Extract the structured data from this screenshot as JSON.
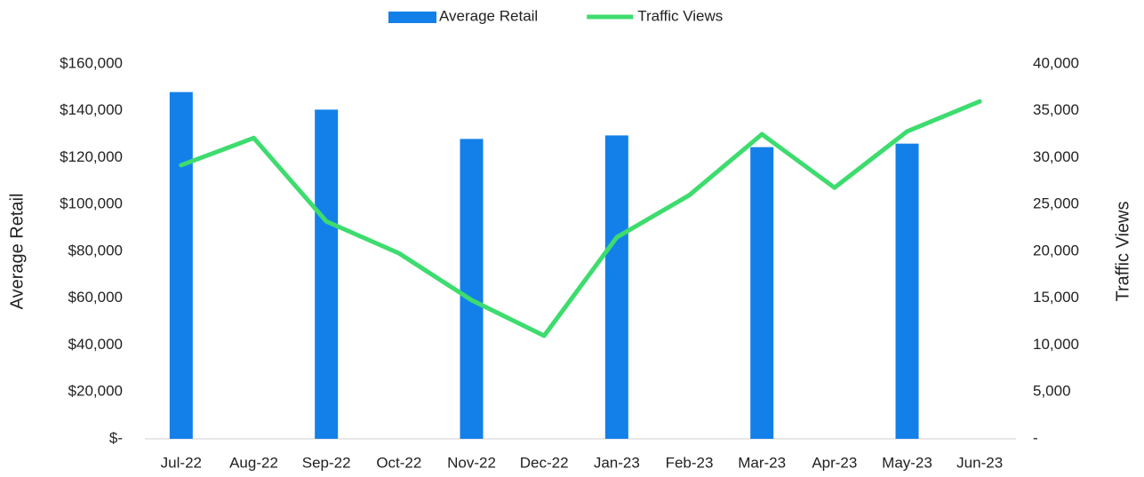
{
  "chart_data": {
    "type": "bar",
    "categories": [
      "Jul-22",
      "Aug-22",
      "Sep-22",
      "Oct-22",
      "Nov-22",
      "Dec-22",
      "Jan-23",
      "Feb-23",
      "Mar-23",
      "Apr-23",
      "May-23",
      "Jun-23"
    ],
    "series": [
      {
        "name": "Average Retail",
        "type": "bar",
        "color": "#1380ea",
        "values": [
          148000,
          null,
          140500,
          null,
          128000,
          null,
          129500,
          null,
          124500,
          null,
          126000,
          null
        ]
      },
      {
        "name": "Traffic Views",
        "type": "line",
        "axis": "y2",
        "color": "#3ddc6e",
        "values": [
          29200,
          32100,
          23200,
          19800,
          14800,
          11000,
          21500,
          26000,
          32500,
          26800,
          32800,
          36000
        ]
      }
    ],
    "y_label": "Average Retail",
    "y2_label": "Traffic Views",
    "ylim": [
      0,
      160000
    ],
    "yticks": [
      {
        "value": 0,
        "label": "$-"
      },
      {
        "value": 20000,
        "label": "$20,000"
      },
      {
        "value": 40000,
        "label": "$40,000"
      },
      {
        "value": 60000,
        "label": "$60,000"
      },
      {
        "value": 80000,
        "label": "$80,000"
      },
      {
        "value": 100000,
        "label": "$100,000"
      },
      {
        "value": 120000,
        "label": "$120,000"
      },
      {
        "value": 140000,
        "label": "$140,000"
      },
      {
        "value": 160000,
        "label": "$160,000"
      }
    ],
    "y2lim": [
      0,
      40000
    ],
    "y2ticks": [
      {
        "value": 0,
        "label": "-"
      },
      {
        "value": 5000,
        "label": "5,000"
      },
      {
        "value": 10000,
        "label": "10,000"
      },
      {
        "value": 15000,
        "label": "15,000"
      },
      {
        "value": 20000,
        "label": "20,000"
      },
      {
        "value": 25000,
        "label": "25,000"
      },
      {
        "value": 30000,
        "label": "30,000"
      },
      {
        "value": 35000,
        "label": "35,000"
      },
      {
        "value": 40000,
        "label": "40,000"
      }
    ],
    "legend": "top",
    "grid": false
  }
}
